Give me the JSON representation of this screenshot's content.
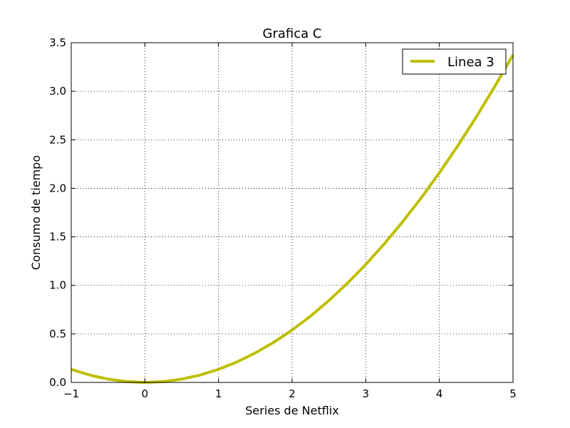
{
  "chart_data": {
    "type": "line",
    "title": "Grafica C",
    "xlabel": "Series de Netflix",
    "ylabel": "Consumo de tiempo",
    "xlim": [
      -1,
      5
    ],
    "ylim": [
      0,
      3.5
    ],
    "xticks": [
      -1,
      0,
      1,
      2,
      3,
      4,
      5
    ],
    "xtick_labels": [
      "−1",
      "0",
      "1",
      "2",
      "3",
      "4",
      "5"
    ],
    "yticks": [
      0,
      0.5,
      1,
      1.5,
      2,
      2.5,
      3,
      3.5
    ],
    "ytick_labels": [
      "0.0",
      "0.5",
      "1.0",
      "1.5",
      "2.0",
      "2.5",
      "3.0",
      "3.5"
    ],
    "grid": true,
    "legend_position": "top-right",
    "series": [
      {
        "name": "Linea 3",
        "color": "#bfbf00",
        "x": [
          -1,
          -0.75,
          -0.5,
          -0.25,
          0,
          0.25,
          0.5,
          0.75,
          1,
          1.25,
          1.5,
          1.75,
          2,
          2.25,
          2.5,
          2.75,
          3,
          3.25,
          3.5,
          3.75,
          4,
          4.25,
          4.5,
          4.75,
          5
        ],
        "y": [
          0.135,
          0.076,
          0.034,
          0.008,
          0.0,
          0.008,
          0.034,
          0.076,
          0.135,
          0.211,
          0.304,
          0.413,
          0.54,
          0.683,
          0.844,
          1.021,
          1.215,
          1.426,
          1.654,
          1.898,
          2.16,
          2.438,
          2.734,
          3.046,
          3.375
        ]
      }
    ]
  }
}
